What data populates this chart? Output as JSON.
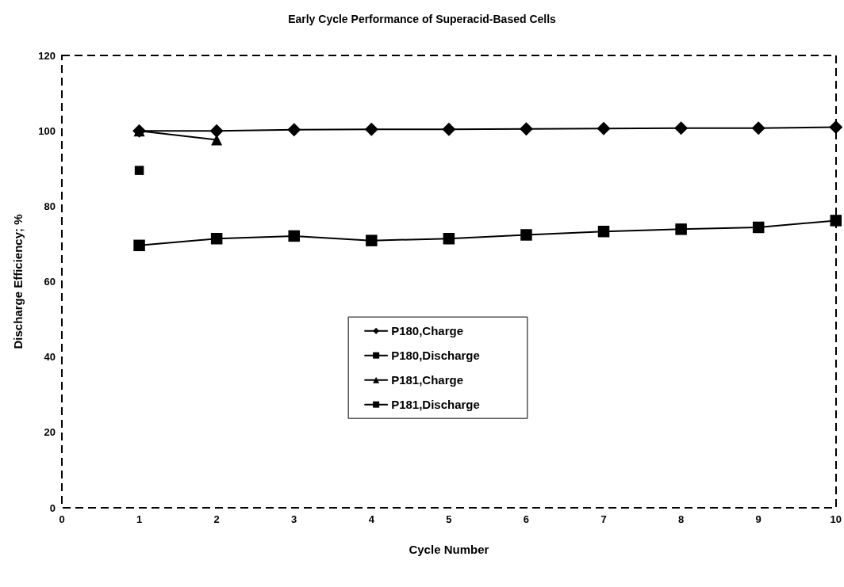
{
  "chart_data": {
    "type": "line",
    "title": "Early Cycle Performance of Superacid-Based Cells",
    "xlabel": "Cycle Number",
    "ylabel": "Discharge Efficiency; %",
    "x": [
      1,
      2,
      3,
      4,
      5,
      6,
      7,
      8,
      9,
      10
    ],
    "series": [
      {
        "name": "P180,Charge",
        "color": "#000000",
        "marker": "diamond",
        "values": [
          100,
          100,
          100.3,
          100.4,
          100.4,
          100.5,
          100.6,
          100.7,
          100.7,
          101
        ]
      },
      {
        "name": "P180,Discharge",
        "color": "#000000",
        "marker": "square",
        "values": [
          69.6,
          71.4,
          72.1,
          70.9,
          71.4,
          72.4,
          73.3,
          73.9,
          74.4,
          76.2
        ]
      },
      {
        "name": "P181,Charge",
        "color": "#000000",
        "marker": "triangle",
        "values": [
          100,
          97.6,
          null,
          null,
          null,
          null,
          null,
          null,
          null,
          null
        ]
      },
      {
        "name": "P181,Discharge",
        "color": "#000000",
        "marker": "square",
        "values": [
          89.5,
          null,
          null,
          null,
          null,
          null,
          null,
          null,
          null,
          null
        ]
      }
    ],
    "xlim": [
      0,
      10
    ],
    "xticks": [
      0,
      1,
      2,
      3,
      4,
      5,
      6,
      7,
      8,
      9,
      10
    ],
    "ylim": [
      0,
      120
    ],
    "yticks": [
      0,
      20,
      40,
      60,
      80,
      100,
      120
    ],
    "grid": false,
    "legend": "center",
    "line_style": "solid"
  }
}
